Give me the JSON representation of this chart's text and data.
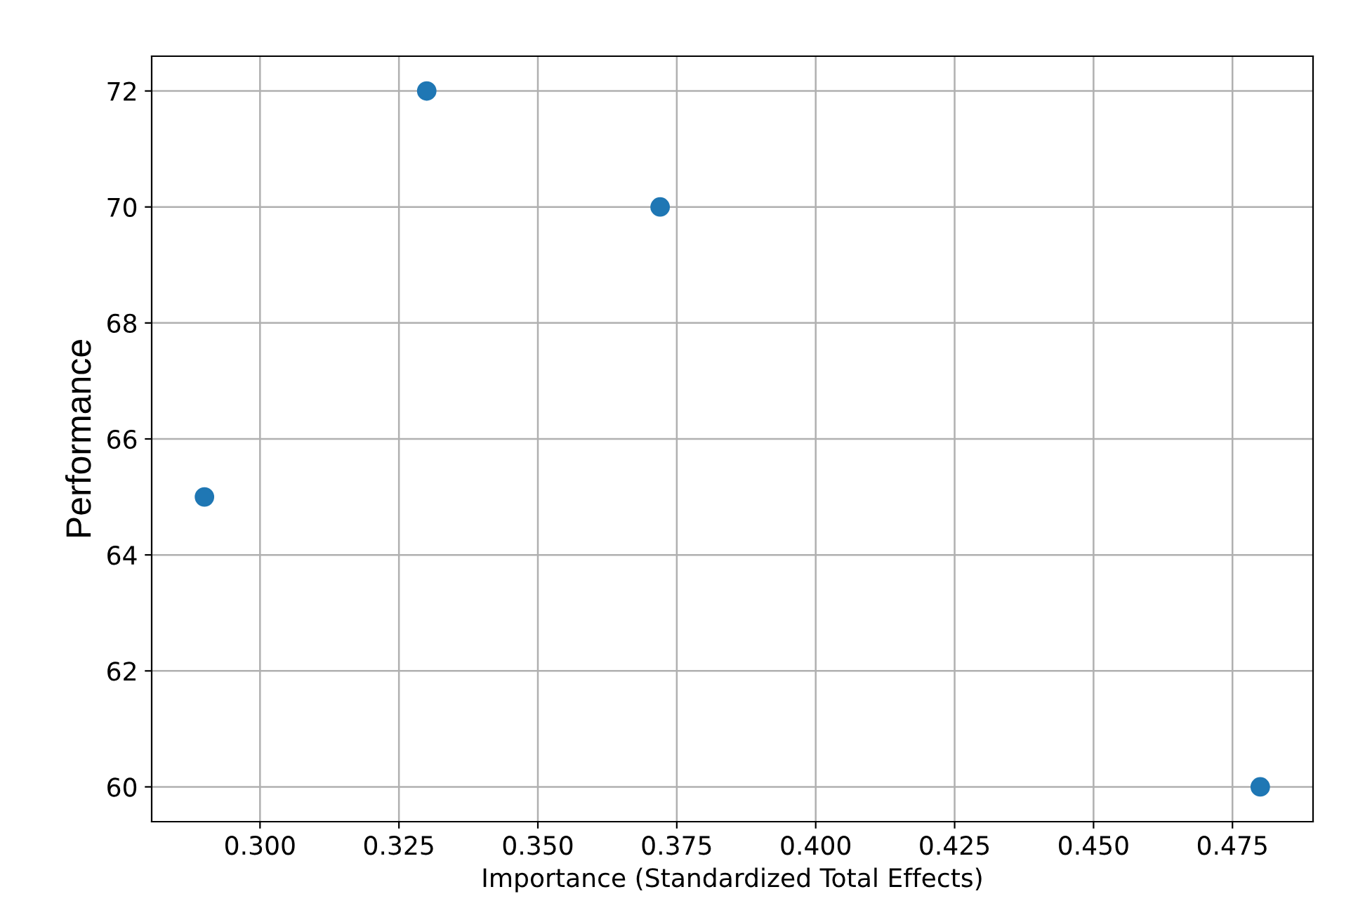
{
  "chart_data": {
    "type": "scatter",
    "xlabel": "Importance (Standardized Total Effects)",
    "ylabel": "Performance",
    "x": [
      0.29,
      0.33,
      0.372,
      0.48
    ],
    "series": [
      {
        "color": "#1f77b4",
        "values": [
          65,
          72,
          70,
          60
        ]
      }
    ],
    "xlim": [
      0.2805,
      0.4895
    ],
    "ylim": [
      59.4,
      72.6
    ],
    "xticks": [
      {
        "value": 0.3,
        "label": "0.300"
      },
      {
        "value": 0.325,
        "label": "0.325"
      },
      {
        "value": 0.35,
        "label": "0.350"
      },
      {
        "value": 0.375,
        "label": "0.375"
      },
      {
        "value": 0.4,
        "label": "0.400"
      },
      {
        "value": 0.425,
        "label": "0.425"
      },
      {
        "value": 0.45,
        "label": "0.450"
      },
      {
        "value": 0.475,
        "label": "0.475"
      }
    ],
    "yticks": [
      60,
      62,
      64,
      66,
      68,
      70,
      72
    ],
    "grid": true,
    "marker": "circle"
  }
}
